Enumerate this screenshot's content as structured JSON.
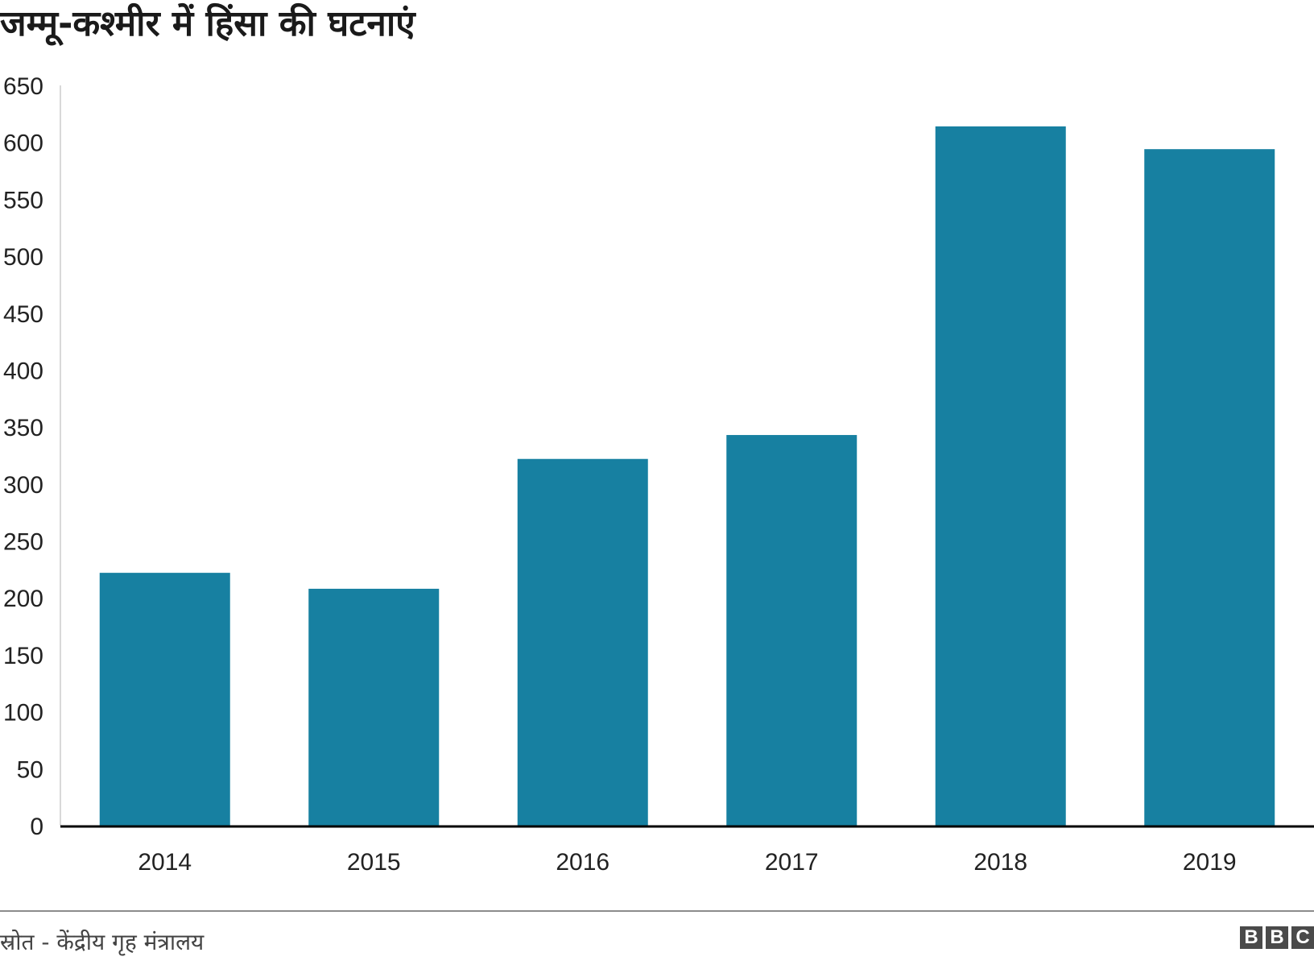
{
  "title": "जम्मू-कश्मीर में हिंसा की घटनाएं",
  "source": "स्रोत - केंद्रीय गृह मंत्रालय",
  "logo": {
    "letters": [
      "B",
      "B",
      "C"
    ]
  },
  "colors": {
    "bar": "#1780a1",
    "axis": "#000000",
    "grid_axis": "#d9d9d9"
  },
  "chart_data": {
    "type": "bar",
    "categories": [
      "2014",
      "2015",
      "2016",
      "2017",
      "2018",
      "2019"
    ],
    "values": [
      222,
      208,
      322,
      343,
      614,
      594
    ],
    "ylim": [
      0,
      650
    ],
    "yticks": [
      0,
      50,
      100,
      150,
      200,
      250,
      300,
      350,
      400,
      450,
      500,
      550,
      600,
      650
    ],
    "xlabel": "",
    "ylabel": "",
    "grid": false,
    "legend": "none"
  }
}
